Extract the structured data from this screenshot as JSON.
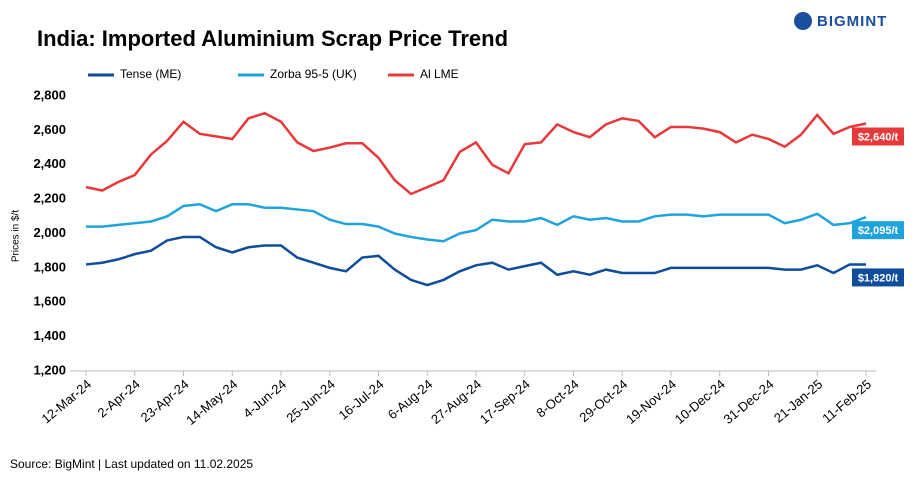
{
  "logo": "BIGMINT",
  "chart_data": {
    "type": "line",
    "title": "India: Imported Aluminium Scrap Price Trend",
    "y_label": "Prices in $/t",
    "source": "Source: BigMint | Last updated on 11.02.2025",
    "categories": [
      "12-Mar-24",
      null,
      null,
      "2-Apr-24",
      null,
      null,
      "23-Apr-24",
      null,
      null,
      "14-May-24",
      null,
      null,
      "4-Jun-24",
      null,
      null,
      "25-Jun-24",
      null,
      null,
      "16-Jul-24",
      null,
      null,
      "6-Aug-24",
      null,
      null,
      "27-Aug-24",
      null,
      null,
      "17-Sep-24",
      null,
      null,
      "8-Oct-24",
      null,
      null,
      "29-Oct-24",
      null,
      null,
      "19-Nov-24",
      null,
      null,
      "10-Dec-24",
      null,
      null,
      "31-Dec-24",
      null,
      null,
      "21-Jan-25",
      null,
      null,
      "11-Feb-25"
    ],
    "series": [
      {
        "name": "Tense (ME)",
        "color": "#0f4c9c",
        "values": [
          1820,
          1830,
          1850,
          1880,
          1900,
          1960,
          1980,
          1980,
          1920,
          1890,
          1920,
          1930,
          1930,
          1860,
          1830,
          1800,
          1780,
          1860,
          1870,
          1790,
          1730,
          1700,
          1730,
          1780,
          1815,
          1830,
          1790,
          1810,
          1830,
          1760,
          1780,
          1760,
          1790,
          1770,
          1770,
          1770,
          1800,
          1800,
          1800,
          1800,
          1800,
          1800,
          1800,
          1790,
          1790,
          1815,
          1770,
          1820,
          1820
        ],
        "value_labels": [
          null,
          null,
          null,
          null,
          null,
          null,
          null,
          null,
          null,
          null,
          null,
          null,
          null,
          null,
          null,
          null,
          null,
          null,
          null,
          null,
          null,
          null,
          null,
          null,
          null,
          null,
          null,
          null,
          null,
          null,
          null,
          null,
          null,
          null,
          null,
          null,
          null,
          null,
          null,
          null,
          null,
          null,
          null,
          null,
          null,
          null,
          null,
          null,
          "$1,820/t"
        ]
      },
      {
        "name": "Zorba 95-5 (UK)",
        "color": "#1fa3dc",
        "values": [
          2040,
          2040,
          2050,
          2060,
          2070,
          2100,
          2160,
          2170,
          2130,
          2170,
          2170,
          2150,
          2150,
          2140,
          2130,
          2080,
          2055,
          2055,
          2040,
          2000,
          1980,
          1965,
          1955,
          2000,
          2020,
          2080,
          2070,
          2070,
          2090,
          2050,
          2100,
          2080,
          2090,
          2070,
          2070,
          2100,
          2110,
          2110,
          2100,
          2110,
          2110,
          2110,
          2110,
          2060,
          2080,
          2115,
          2050,
          2060,
          2095
        ],
        "value_labels": [
          null,
          null,
          null,
          null,
          null,
          null,
          null,
          null,
          null,
          null,
          null,
          null,
          null,
          null,
          null,
          null,
          null,
          null,
          null,
          null,
          null,
          null,
          null,
          null,
          null,
          null,
          null,
          null,
          null,
          null,
          null,
          null,
          null,
          null,
          null,
          null,
          null,
          null,
          null,
          null,
          null,
          null,
          null,
          null,
          null,
          null,
          null,
          null,
          "$2,095/t"
        ]
      },
      {
        "name": "Al LME",
        "color": "#e8393a",
        "values": [
          2270,
          2250,
          2300,
          2340,
          2460,
          2540,
          2650,
          2580,
          2565,
          2550,
          2670,
          2700,
          2650,
          2530,
          2480,
          2500,
          2525,
          2525,
          2440,
          2310,
          2230,
          2270,
          2310,
          2475,
          2530,
          2400,
          2350,
          2520,
          2530,
          2635,
          2590,
          2560,
          2635,
          2670,
          2655,
          2560,
          2620,
          2620,
          2610,
          2590,
          2530,
          2575,
          2550,
          2505,
          2575,
          2690,
          2580,
          2620,
          2640
        ],
        "value_labels": [
          null,
          null,
          null,
          null,
          null,
          null,
          null,
          null,
          null,
          null,
          null,
          null,
          null,
          null,
          null,
          null,
          null,
          null,
          null,
          null,
          null,
          null,
          null,
          null,
          null,
          null,
          null,
          null,
          null,
          null,
          null,
          null,
          null,
          null,
          null,
          null,
          null,
          null,
          null,
          null,
          null,
          null,
          null,
          null,
          null,
          null,
          null,
          null,
          "$2,640/t"
        ]
      }
    ],
    "ylim": [
      1200,
      2800
    ],
    "yticks": [
      {
        "value": 1200,
        "label": "1,200"
      },
      {
        "value": 1400,
        "label": "1,400"
      },
      {
        "value": 1600,
        "label": "1,600"
      },
      {
        "value": 1800,
        "label": "1,800"
      },
      {
        "value": 2000,
        "label": "2,000"
      },
      {
        "value": 2200,
        "label": "2,200"
      },
      {
        "value": 2400,
        "label": "2,400"
      },
      {
        "value": 2600,
        "label": "2,600"
      },
      {
        "value": 2800,
        "label": "2,800"
      }
    ],
    "grid": false
  }
}
